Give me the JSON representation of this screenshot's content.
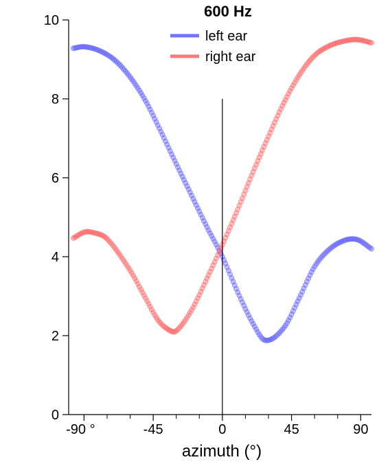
{
  "chart_data": {
    "type": "scatter",
    "title": "600 Hz",
    "xlabel": "azimuth (°)",
    "ylabel": "",
    "xlim": [
      -100,
      97
    ],
    "ylim": [
      0,
      10
    ],
    "x_ticks": [
      {
        "value": -90,
        "label": "-90 °"
      },
      {
        "value": -45,
        "label": "-45"
      },
      {
        "value": 0,
        "label": "0"
      },
      {
        "value": 45,
        "label": "45"
      },
      {
        "value": 90,
        "label": "90"
      }
    ],
    "x_minor_ticks": [
      -75,
      -60,
      -30,
      -15,
      15,
      30,
      60,
      75
    ],
    "y_ticks": [
      {
        "value": 0,
        "label": "0"
      },
      {
        "value": 2,
        "label": "2"
      },
      {
        "value": 4,
        "label": "4"
      },
      {
        "value": 6,
        "label": "6"
      },
      {
        "value": 8,
        "label": "8"
      },
      {
        "value": 10,
        "label": "10"
      }
    ],
    "vertical_line": {
      "x": 0,
      "y_from": 0,
      "y_to": 8
    },
    "grid": false,
    "legend_position": "top-center",
    "series": [
      {
        "name": "left ear",
        "color": "#5b5bff",
        "x": [
          -97,
          -90,
          -80,
          -70,
          -60,
          -50,
          -40,
          -30,
          -20,
          -10,
          0,
          10,
          20,
          28,
          40,
          50,
          60,
          70,
          80,
          88,
          97
        ],
        "y": [
          9.28,
          9.32,
          9.22,
          8.98,
          8.55,
          7.95,
          7.17,
          6.35,
          5.55,
          4.75,
          4.0,
          3.1,
          2.3,
          1.88,
          2.2,
          2.95,
          3.75,
          4.2,
          4.42,
          4.43,
          4.2
        ]
      },
      {
        "name": "right ear",
        "color": "#ff6060",
        "x": [
          -97,
          -90,
          -85,
          -75,
          -60,
          -50,
          -42,
          -35,
          -30,
          -20,
          -10,
          0,
          10,
          20,
          30,
          40,
          50,
          60,
          70,
          80,
          88,
          97
        ],
        "y": [
          4.47,
          4.62,
          4.62,
          4.45,
          3.65,
          2.95,
          2.4,
          2.15,
          2.12,
          2.65,
          3.45,
          4.3,
          5.2,
          6.15,
          7.05,
          7.9,
          8.6,
          9.1,
          9.35,
          9.47,
          9.5,
          9.42
        ]
      }
    ]
  }
}
